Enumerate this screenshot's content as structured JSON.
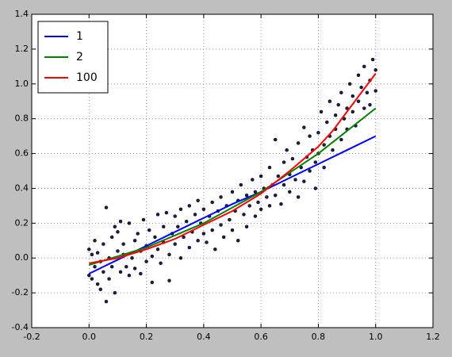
{
  "chart_data": {
    "type": "line",
    "xlim": [
      -0.2,
      1.2
    ],
    "ylim": [
      -0.4,
      1.4
    ],
    "xticks": [
      -0.2,
      {
        "value": 0,
        "label": "0.0"
      },
      0.2,
      0.4,
      0.6,
      0.8,
      {
        "value": 1,
        "label": "1.0"
      },
      1.2
    ],
    "yticks": [
      -0.4,
      -0.2,
      {
        "value": 0,
        "label": "0.0"
      },
      0.2,
      0.4,
      0.6,
      0.8,
      {
        "value": 1,
        "label": "1.0"
      },
      1.2,
      1.4
    ],
    "grid": true,
    "legend": "upper left",
    "scatter": {
      "color": "#1a1f4d",
      "x": [
        0.0,
        0.0,
        0.01,
        0.01,
        0.02,
        0.02,
        0.03,
        0.03,
        0.04,
        0.04,
        0.05,
        0.05,
        0.06,
        0.06,
        0.07,
        0.07,
        0.08,
        0.08,
        0.09,
        0.09,
        0.1,
        0.1,
        0.11,
        0.11,
        0.12,
        0.12,
        0.13,
        0.14,
        0.14,
        0.15,
        0.16,
        0.16,
        0.17,
        0.18,
        0.18,
        0.19,
        0.2,
        0.2,
        0.21,
        0.22,
        0.22,
        0.23,
        0.24,
        0.24,
        0.25,
        0.26,
        0.26,
        0.27,
        0.28,
        0.28,
        0.29,
        0.3,
        0.3,
        0.31,
        0.32,
        0.32,
        0.33,
        0.34,
        0.35,
        0.35,
        0.36,
        0.37,
        0.38,
        0.38,
        0.39,
        0.4,
        0.4,
        0.41,
        0.42,
        0.43,
        0.43,
        0.44,
        0.45,
        0.46,
        0.46,
        0.47,
        0.48,
        0.49,
        0.5,
        0.5,
        0.51,
        0.52,
        0.52,
        0.53,
        0.54,
        0.55,
        0.55,
        0.56,
        0.57,
        0.58,
        0.58,
        0.59,
        0.6,
        0.6,
        0.61,
        0.62,
        0.63,
        0.63,
        0.64,
        0.65,
        0.65,
        0.66,
        0.67,
        0.68,
        0.68,
        0.69,
        0.7,
        0.7,
        0.71,
        0.72,
        0.73,
        0.73,
        0.74,
        0.75,
        0.75,
        0.76,
        0.77,
        0.77,
        0.78,
        0.79,
        0.79,
        0.8,
        0.8,
        0.81,
        0.82,
        0.82,
        0.83,
        0.84,
        0.84,
        0.85,
        0.86,
        0.86,
        0.87,
        0.88,
        0.88,
        0.89,
        0.9,
        0.9,
        0.91,
        0.92,
        0.92,
        0.93,
        0.94,
        0.94,
        0.95,
        0.96,
        0.96,
        0.97,
        0.98,
        0.98,
        0.99,
        1.0,
        1.0
      ],
      "values": [
        0.05,
        -0.1,
        0.02,
        -0.12,
        -0.05,
        0.1,
        -0.15,
        0.03,
        -0.02,
        -0.18,
        0.08,
        -0.08,
        0.29,
        -0.25,
        0.0,
        -0.12,
        0.12,
        -0.05,
        0.18,
        -0.2,
        0.04,
        0.15,
        -0.08,
        0.21,
        0.02,
        0.08,
        -0.05,
        0.2,
        -0.1,
        0.0,
        0.1,
        -0.06,
        0.14,
        0.04,
        -0.09,
        0.22,
        0.07,
        -0.02,
        0.16,
        0.01,
        -0.14,
        0.12,
        0.25,
        0.05,
        -0.03,
        0.18,
        0.09,
        0.26,
        0.02,
        -0.13,
        0.14,
        0.24,
        0.08,
        0.18,
        0.0,
        0.28,
        0.12,
        0.21,
        0.06,
        0.3,
        0.15,
        0.25,
        0.1,
        0.33,
        0.2,
        0.14,
        0.28,
        0.09,
        0.24,
        0.32,
        0.16,
        0.05,
        0.27,
        0.19,
        0.35,
        0.12,
        0.3,
        0.22,
        0.38,
        0.16,
        0.27,
        0.1,
        0.33,
        0.42,
        0.25,
        0.18,
        0.36,
        0.3,
        0.45,
        0.24,
        0.38,
        0.32,
        0.47,
        0.28,
        0.4,
        0.35,
        0.52,
        0.3,
        0.42,
        0.68,
        0.36,
        0.47,
        0.31,
        0.55,
        0.42,
        0.62,
        0.48,
        0.38,
        0.57,
        0.45,
        0.66,
        0.35,
        0.52,
        0.75,
        0.44,
        0.58,
        0.5,
        0.7,
        0.62,
        0.4,
        0.55,
        0.72,
        0.6,
        0.84,
        0.65,
        0.52,
        0.78,
        0.7,
        0.9,
        0.62,
        0.82,
        0.74,
        0.88,
        0.68,
        0.95,
        0.8,
        0.86,
        0.74,
        1.0,
        0.84,
        0.93,
        0.76,
        1.05,
        0.9,
        0.98,
        0.86,
        1.1,
        0.95,
        1.02,
        0.88,
        1.14,
        0.96,
        1.08
      ]
    },
    "series": [
      {
        "name": "1",
        "color": "#0000ff",
        "x": [
          0,
          0.1,
          0.2,
          0.3,
          0.4,
          0.5,
          0.6,
          0.7,
          0.8,
          0.9,
          1
        ],
        "values": [
          -0.09,
          -0.01,
          0.07,
          0.15,
          0.23,
          0.31,
          0.38,
          0.46,
          0.54,
          0.62,
          0.7
        ]
      },
      {
        "name": "2",
        "color": "#008000",
        "x": [
          0,
          0.1,
          0.2,
          0.3,
          0.4,
          0.5,
          0.6,
          0.7,
          0.8,
          0.9,
          1
        ],
        "values": [
          -0.04,
          0.01,
          0.06,
          0.13,
          0.2,
          0.29,
          0.38,
          0.49,
          0.6,
          0.73,
          0.86
        ]
      },
      {
        "name": "100",
        "color": "#ff0000",
        "x": [
          0,
          0.1,
          0.2,
          0.3,
          0.4,
          0.5,
          0.6,
          0.7,
          0.8,
          0.85,
          0.9,
          0.95,
          1
        ],
        "values": [
          -0.03,
          0.0,
          0.05,
          0.11,
          0.19,
          0.27,
          0.37,
          0.5,
          0.64,
          0.73,
          0.84,
          0.95,
          1.06
        ]
      }
    ]
  }
}
